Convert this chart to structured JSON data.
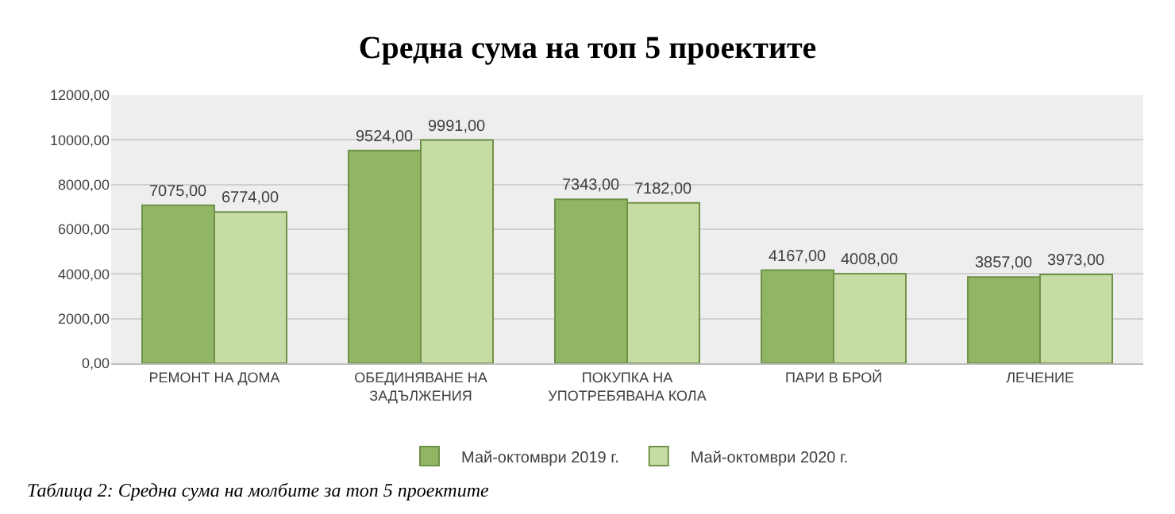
{
  "chart_data": {
    "type": "bar",
    "title": "Средна сума на топ 5 проектите",
    "categories": [
      "РЕМОНТ НА ДОМА",
      "ОБЕДИНЯВАНЕ НА ЗАДЪЛЖЕНИЯ",
      "ПОКУПКА НА УПОТРЕБЯВАНА КОЛА",
      "ПАРИ В БРОЙ",
      "ЛЕЧЕНИЕ"
    ],
    "series": [
      {
        "name": "Май-октомври 2019 г.",
        "color": "#8fb565",
        "values": [
          7075,
          9524,
          7343,
          4167,
          3857
        ],
        "value_labels": [
          "7075,00",
          "9524,00",
          "7343,00",
          "4167,00",
          "3857,00"
        ]
      },
      {
        "name": "Май-октомври 2020 г.",
        "color": "#c6dca4",
        "values": [
          6774,
          9991,
          7182,
          4008,
          3973
        ],
        "value_labels": [
          "6774,00",
          "9991,00",
          "7182,00",
          "4008,00",
          "3973,00"
        ]
      }
    ],
    "ylim": [
      0,
      12000
    ],
    "yticks": [
      {
        "value": 0,
        "label": "0,00"
      },
      {
        "value": 2000,
        "label": "2000,00"
      },
      {
        "value": 4000,
        "label": "4000,00"
      },
      {
        "value": 6000,
        "label": "6000,00"
      },
      {
        "value": 8000,
        "label": "8000,00"
      },
      {
        "value": 10000,
        "label": "10000,00"
      },
      {
        "value": 12000,
        "label": "12000,00"
      }
    ],
    "grid": "y",
    "legend": "bottom",
    "annotations": [
      "Таблица 2: Средна сума на молбите за топ 5 проектите"
    ]
  }
}
